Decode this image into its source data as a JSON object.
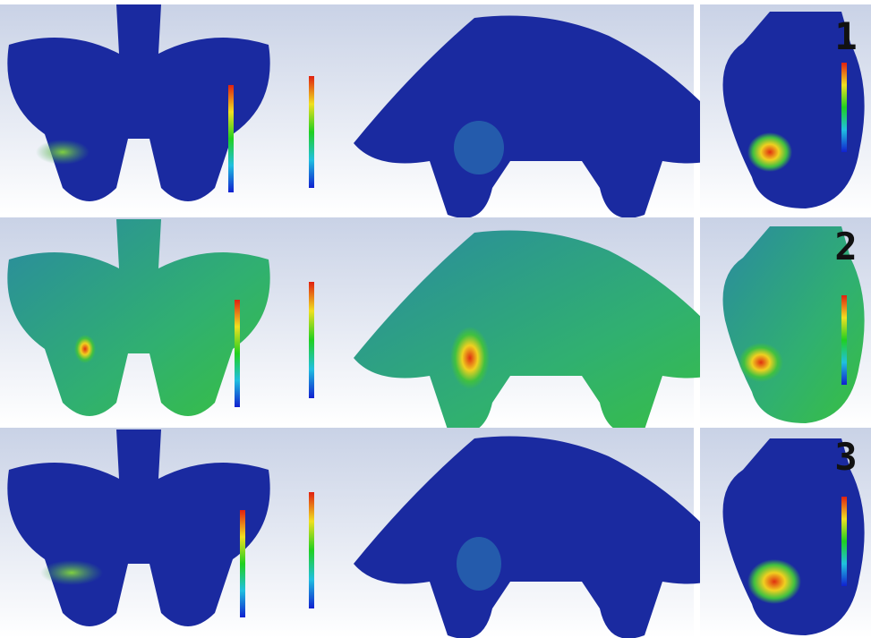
{
  "row_labels": [
    "1",
    "2",
    "3"
  ]
}
